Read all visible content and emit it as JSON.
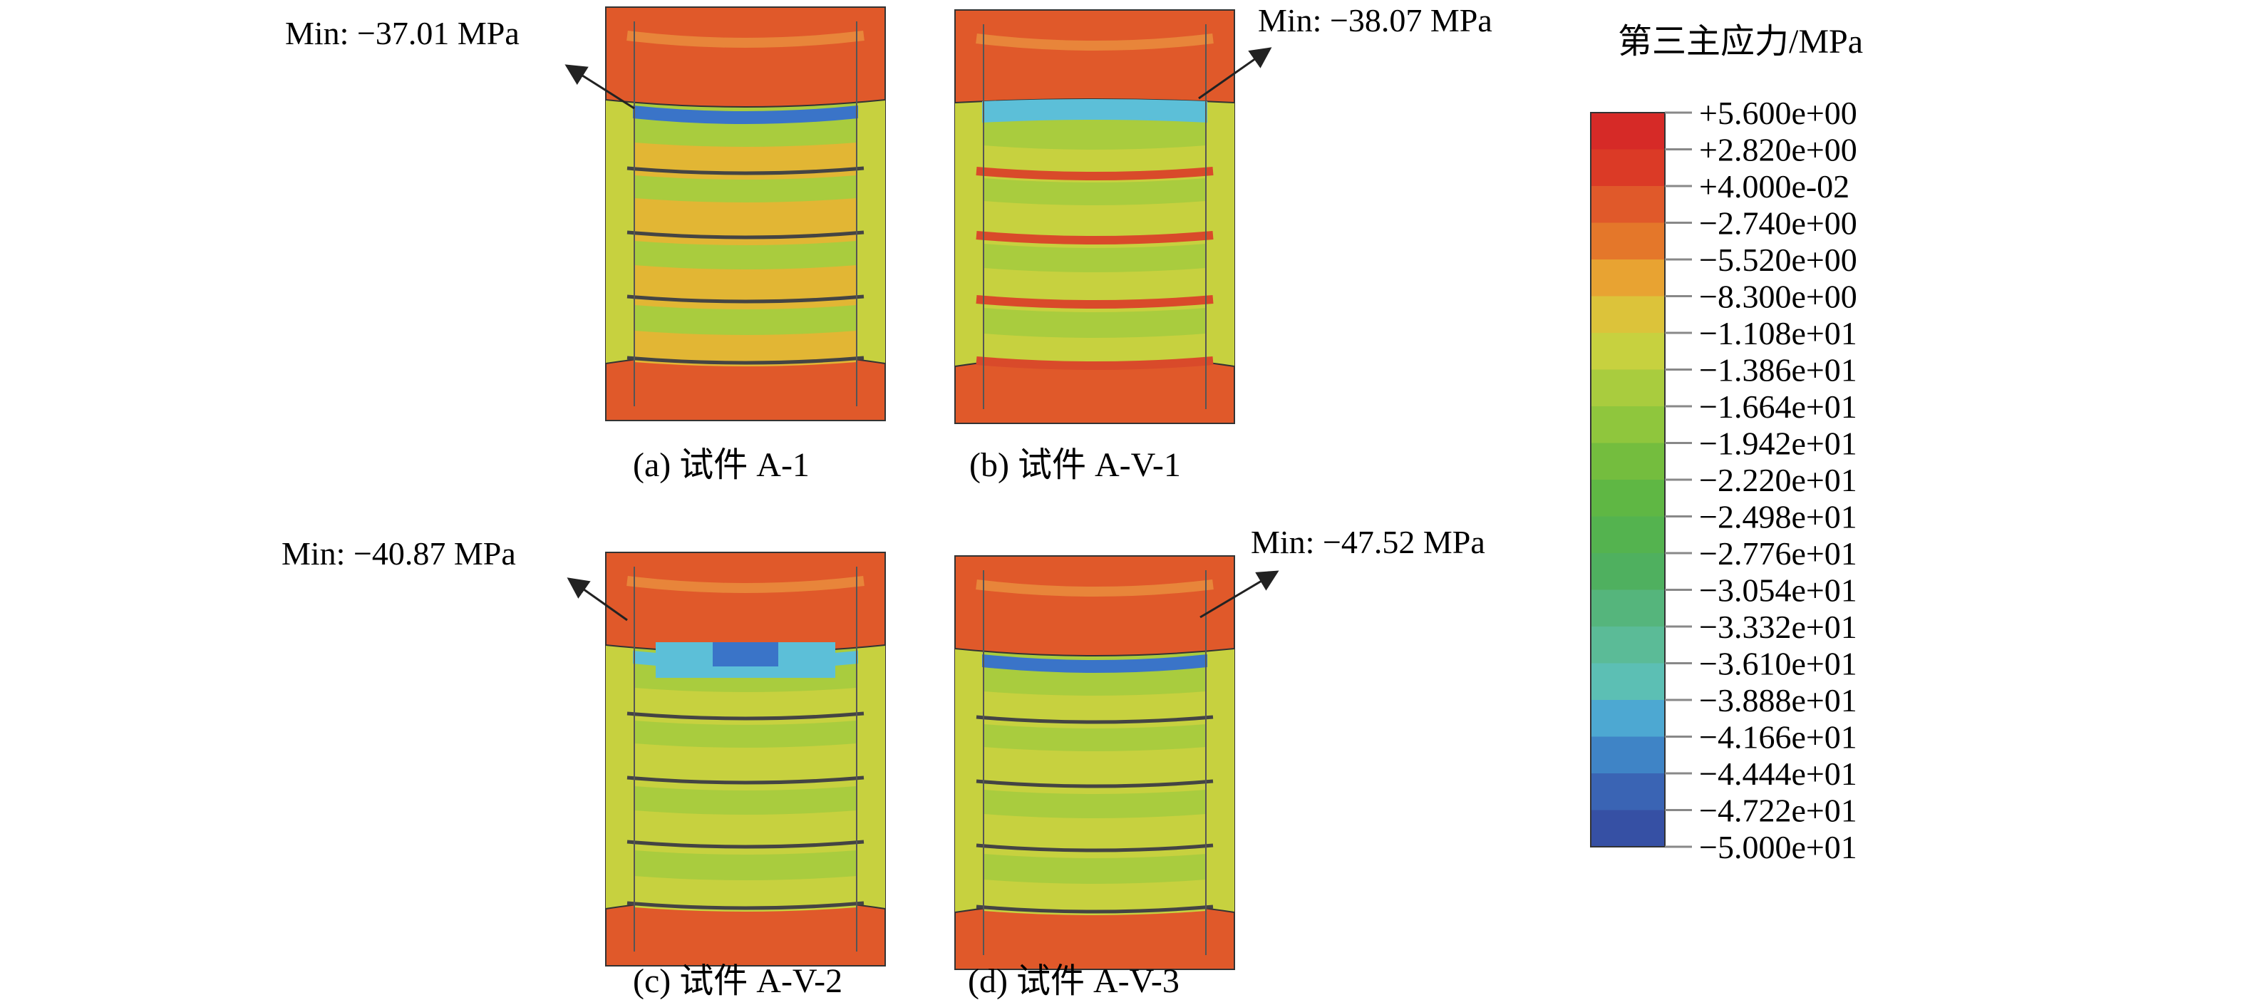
{
  "legend": {
    "title": "第三主应力/MPa",
    "ticks": [
      "+5.600e+00",
      "+2.820e+00",
      "+4.000e-02",
      "−2.740e+00",
      "−5.520e+00",
      "−8.300e+00",
      "−1.108e+01",
      "−1.386e+01",
      "−1.664e+01",
      "−1.942e+01",
      "−2.220e+01",
      "−2.498e+01",
      "−2.776e+01",
      "−3.054e+01",
      "−3.332e+01",
      "−3.610e+01",
      "−3.888e+01",
      "−4.166e+01",
      "−4.444e+01",
      "−4.722e+01",
      "−5.000e+01"
    ],
    "colors": [
      "#d62a27",
      "#db3a26",
      "#e0592a",
      "#e4772a",
      "#e8a332",
      "#dcc33a",
      "#c7d13f",
      "#a9cc3e",
      "#8fc63d",
      "#74bd3e",
      "#5fb744",
      "#54b34f",
      "#4fb05f",
      "#55b57c",
      "#5bbb97",
      "#5cbfb4",
      "#4da8d2",
      "#3f84c6",
      "#3a64b4",
      "#3650a4",
      "#2f3f96"
    ]
  },
  "panels": [
    {
      "caption": "(a) 试件 A-1",
      "min_label": "Min: −37.01 MPa",
      "variant": "a"
    },
    {
      "caption": "(b) 试件 A-V-1",
      "min_label": "Min: −38.07 MPa",
      "variant": "b"
    },
    {
      "caption": "(c) 试件 A-V-2",
      "min_label": "Min: −40.87 MPa",
      "variant": "c"
    },
    {
      "caption": "(d) 试件 A-V-3",
      "min_label": "Min: −47.52 MPa",
      "variant": "d"
    }
  ],
  "colors": {
    "top_plate": "#e0592a",
    "yellow_band": "#e8c03a",
    "green_band": "#a9cc3e",
    "light_blue": "#5cbfd8",
    "blue": "#3a74c8",
    "dark_blue": "#2f3f96",
    "outline": "#333333"
  }
}
